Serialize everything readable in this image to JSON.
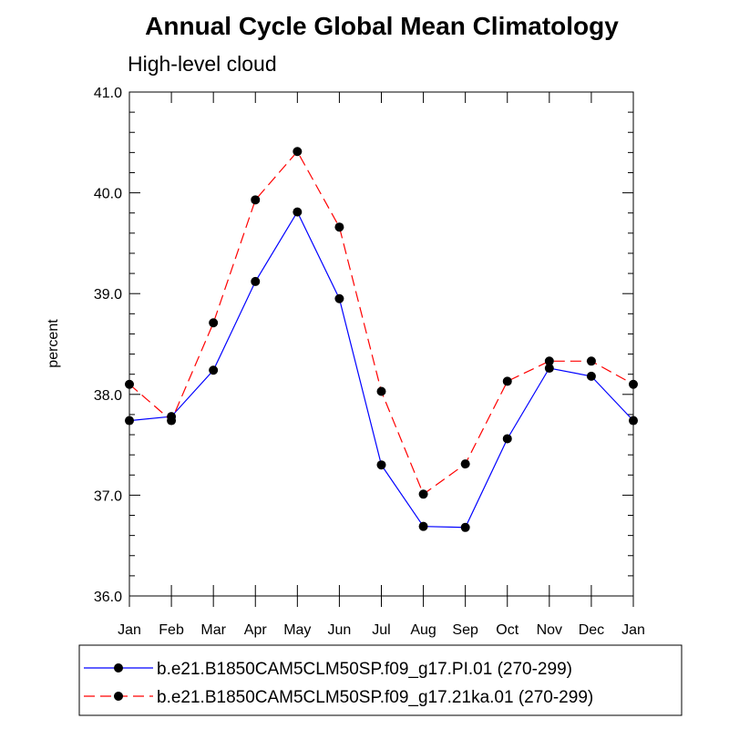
{
  "chart_data": {
    "type": "line",
    "title": "Annual Cycle Global Mean Climatology",
    "subtitle": "High-level cloud",
    "ylabel": "percent",
    "xlabel": "",
    "categories": [
      "Jan",
      "Feb",
      "Mar",
      "Apr",
      "May",
      "Jun",
      "Jul",
      "Aug",
      "Sep",
      "Oct",
      "Nov",
      "Dec",
      "Jan"
    ],
    "ylim": [
      36.0,
      41.0
    ],
    "yticks": [
      "36.0",
      "37.0",
      "38.0",
      "39.0",
      "40.0",
      "41.0"
    ],
    "grid": false,
    "legend_position": "bottom",
    "series": [
      {
        "name": "b.e21.B1850CAM5CLM50SP.f09_g17.PI.01 (270-299)",
        "color": "#0000ff",
        "line_style": "solid",
        "marker": "filled-circle",
        "values": [
          37.74,
          37.78,
          38.24,
          39.12,
          39.81,
          38.95,
          37.3,
          36.69,
          36.68,
          37.56,
          38.26,
          38.18,
          37.74
        ]
      },
      {
        "name": "b.e21.B1850CAM5CLM50SP.f09_g17.21ka.01 (270-299)",
        "color": "#ff0000",
        "line_style": "dashed",
        "marker": "filled-circle",
        "values": [
          38.1,
          37.74,
          38.71,
          39.93,
          40.41,
          39.66,
          38.03,
          37.01,
          37.31,
          38.13,
          38.33,
          38.33,
          38.1
        ]
      }
    ]
  }
}
